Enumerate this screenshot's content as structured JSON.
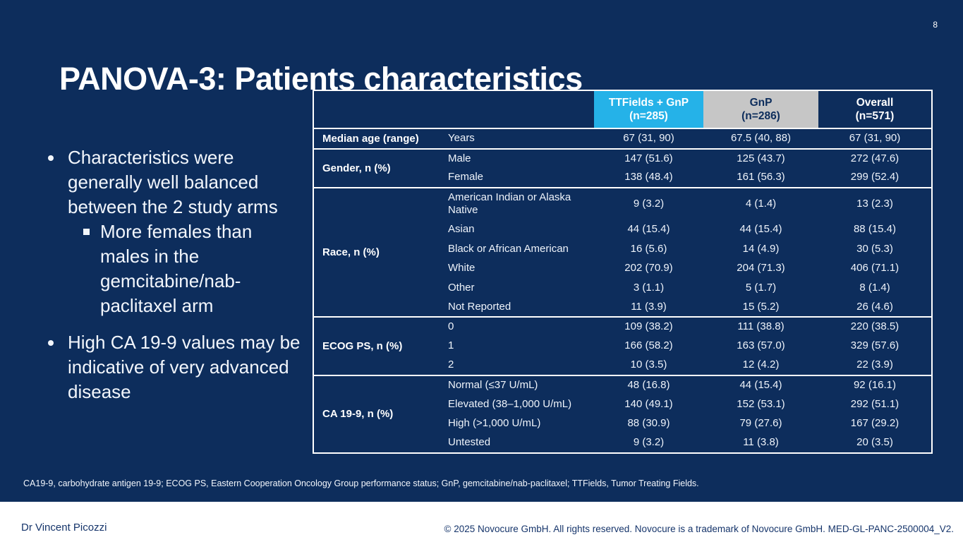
{
  "page_number": "8",
  "title": "PANOVA-3: Patients characteristics",
  "bullets": [
    {
      "level": 1,
      "text": "Characteristics were generally well balanced between the 2 study arms"
    },
    {
      "level": 2,
      "text": "More females than males in the gemcitabine/nab-paclitaxel arm"
    },
    {
      "level": 1,
      "text": "High CA 19-9 values may be indicative of very advanced disease"
    }
  ],
  "table": {
    "columns": [
      {
        "label": "TTFields + GnP",
        "sublabel": "(n=285)"
      },
      {
        "label": "GnP",
        "sublabel": "(n=286)"
      },
      {
        "label": "Overall",
        "sublabel": "(n=571)"
      }
    ],
    "groups": [
      {
        "label": "Median age (range)",
        "rows": [
          {
            "sub": "Years",
            "values": [
              "67 (31, 90)",
              "67.5 (40, 88)",
              "67 (31, 90)"
            ]
          }
        ]
      },
      {
        "label": "Gender, n (%)",
        "rows": [
          {
            "sub": "Male",
            "values": [
              "147 (51.6)",
              "125 (43.7)",
              "272 (47.6)"
            ]
          },
          {
            "sub": "Female",
            "values": [
              "138 (48.4)",
              "161 (56.3)",
              "299 (52.4)"
            ]
          }
        ]
      },
      {
        "label": "Race, n (%)",
        "rows": [
          {
            "sub": "American Indian or Alaska Native",
            "values": [
              "9 (3.2)",
              "4 (1.4)",
              "13 (2.3)"
            ]
          },
          {
            "sub": "Asian",
            "values": [
              "44 (15.4)",
              "44 (15.4)",
              "88 (15.4)"
            ]
          },
          {
            "sub": "Black or African American",
            "values": [
              "16 (5.6)",
              "14 (4.9)",
              "30 (5.3)"
            ]
          },
          {
            "sub": "White",
            "values": [
              "202 (70.9)",
              "204 (71.3)",
              "406 (71.1)"
            ]
          },
          {
            "sub": "Other",
            "values": [
              "3 (1.1)",
              "5 (1.7)",
              "8 (1.4)"
            ]
          },
          {
            "sub": "Not Reported",
            "values": [
              "11 (3.9)",
              "15 (5.2)",
              "26 (4.6)"
            ]
          }
        ]
      },
      {
        "label": "ECOG PS, n (%)",
        "rows": [
          {
            "sub": "0",
            "values": [
              "109 (38.2)",
              "111 (38.8)",
              "220 (38.5)"
            ]
          },
          {
            "sub": "1",
            "values": [
              "166 (58.2)",
              "163 (57.0)",
              "329 (57.6)"
            ]
          },
          {
            "sub": "2",
            "values": [
              "10 (3.5)",
              "12 (4.2)",
              "22 (3.9)"
            ]
          }
        ]
      },
      {
        "label": "CA 19-9, n (%)",
        "rows": [
          {
            "sub": "Normal (≤37 U/mL)",
            "values": [
              "48 (16.8)",
              "44 (15.4)",
              "92 (16.1)"
            ]
          },
          {
            "sub": "Elevated (38–1,000 U/mL)",
            "values": [
              "140 (49.1)",
              "152 (53.1)",
              "292 (51.1)"
            ]
          },
          {
            "sub": "High (>1,000 U/mL)",
            "values": [
              "88 (30.9)",
              "79 (27.6)",
              "167 (29.2)"
            ]
          },
          {
            "sub": "Untested",
            "values": [
              "9 (3.2)",
              "11 (3.8)",
              "20 (3.5)"
            ]
          }
        ]
      }
    ]
  },
  "footnote": "CA19-9, carbohydrate antigen 19-9; ECOG PS, Eastern Cooperation Oncology Group performance status; GnP, gemcitabine/nab-paclitaxel; TTFields, Tumor Treating Fields.",
  "footer": {
    "presenter": "Dr Vincent Picozzi",
    "copyright": "© 2025 Novocure GmbH. All rights reserved. Novocure is a trademark of Novocure GmbH. MED-GL-PANC-2500004_V2."
  },
  "colors": {
    "background": "#0d2d5c",
    "header_cyan": "#25b2e8",
    "header_gray": "#c6c6c6",
    "table_border": "#ffffff",
    "text": "#ffffff",
    "footer_text": "#16356b"
  }
}
